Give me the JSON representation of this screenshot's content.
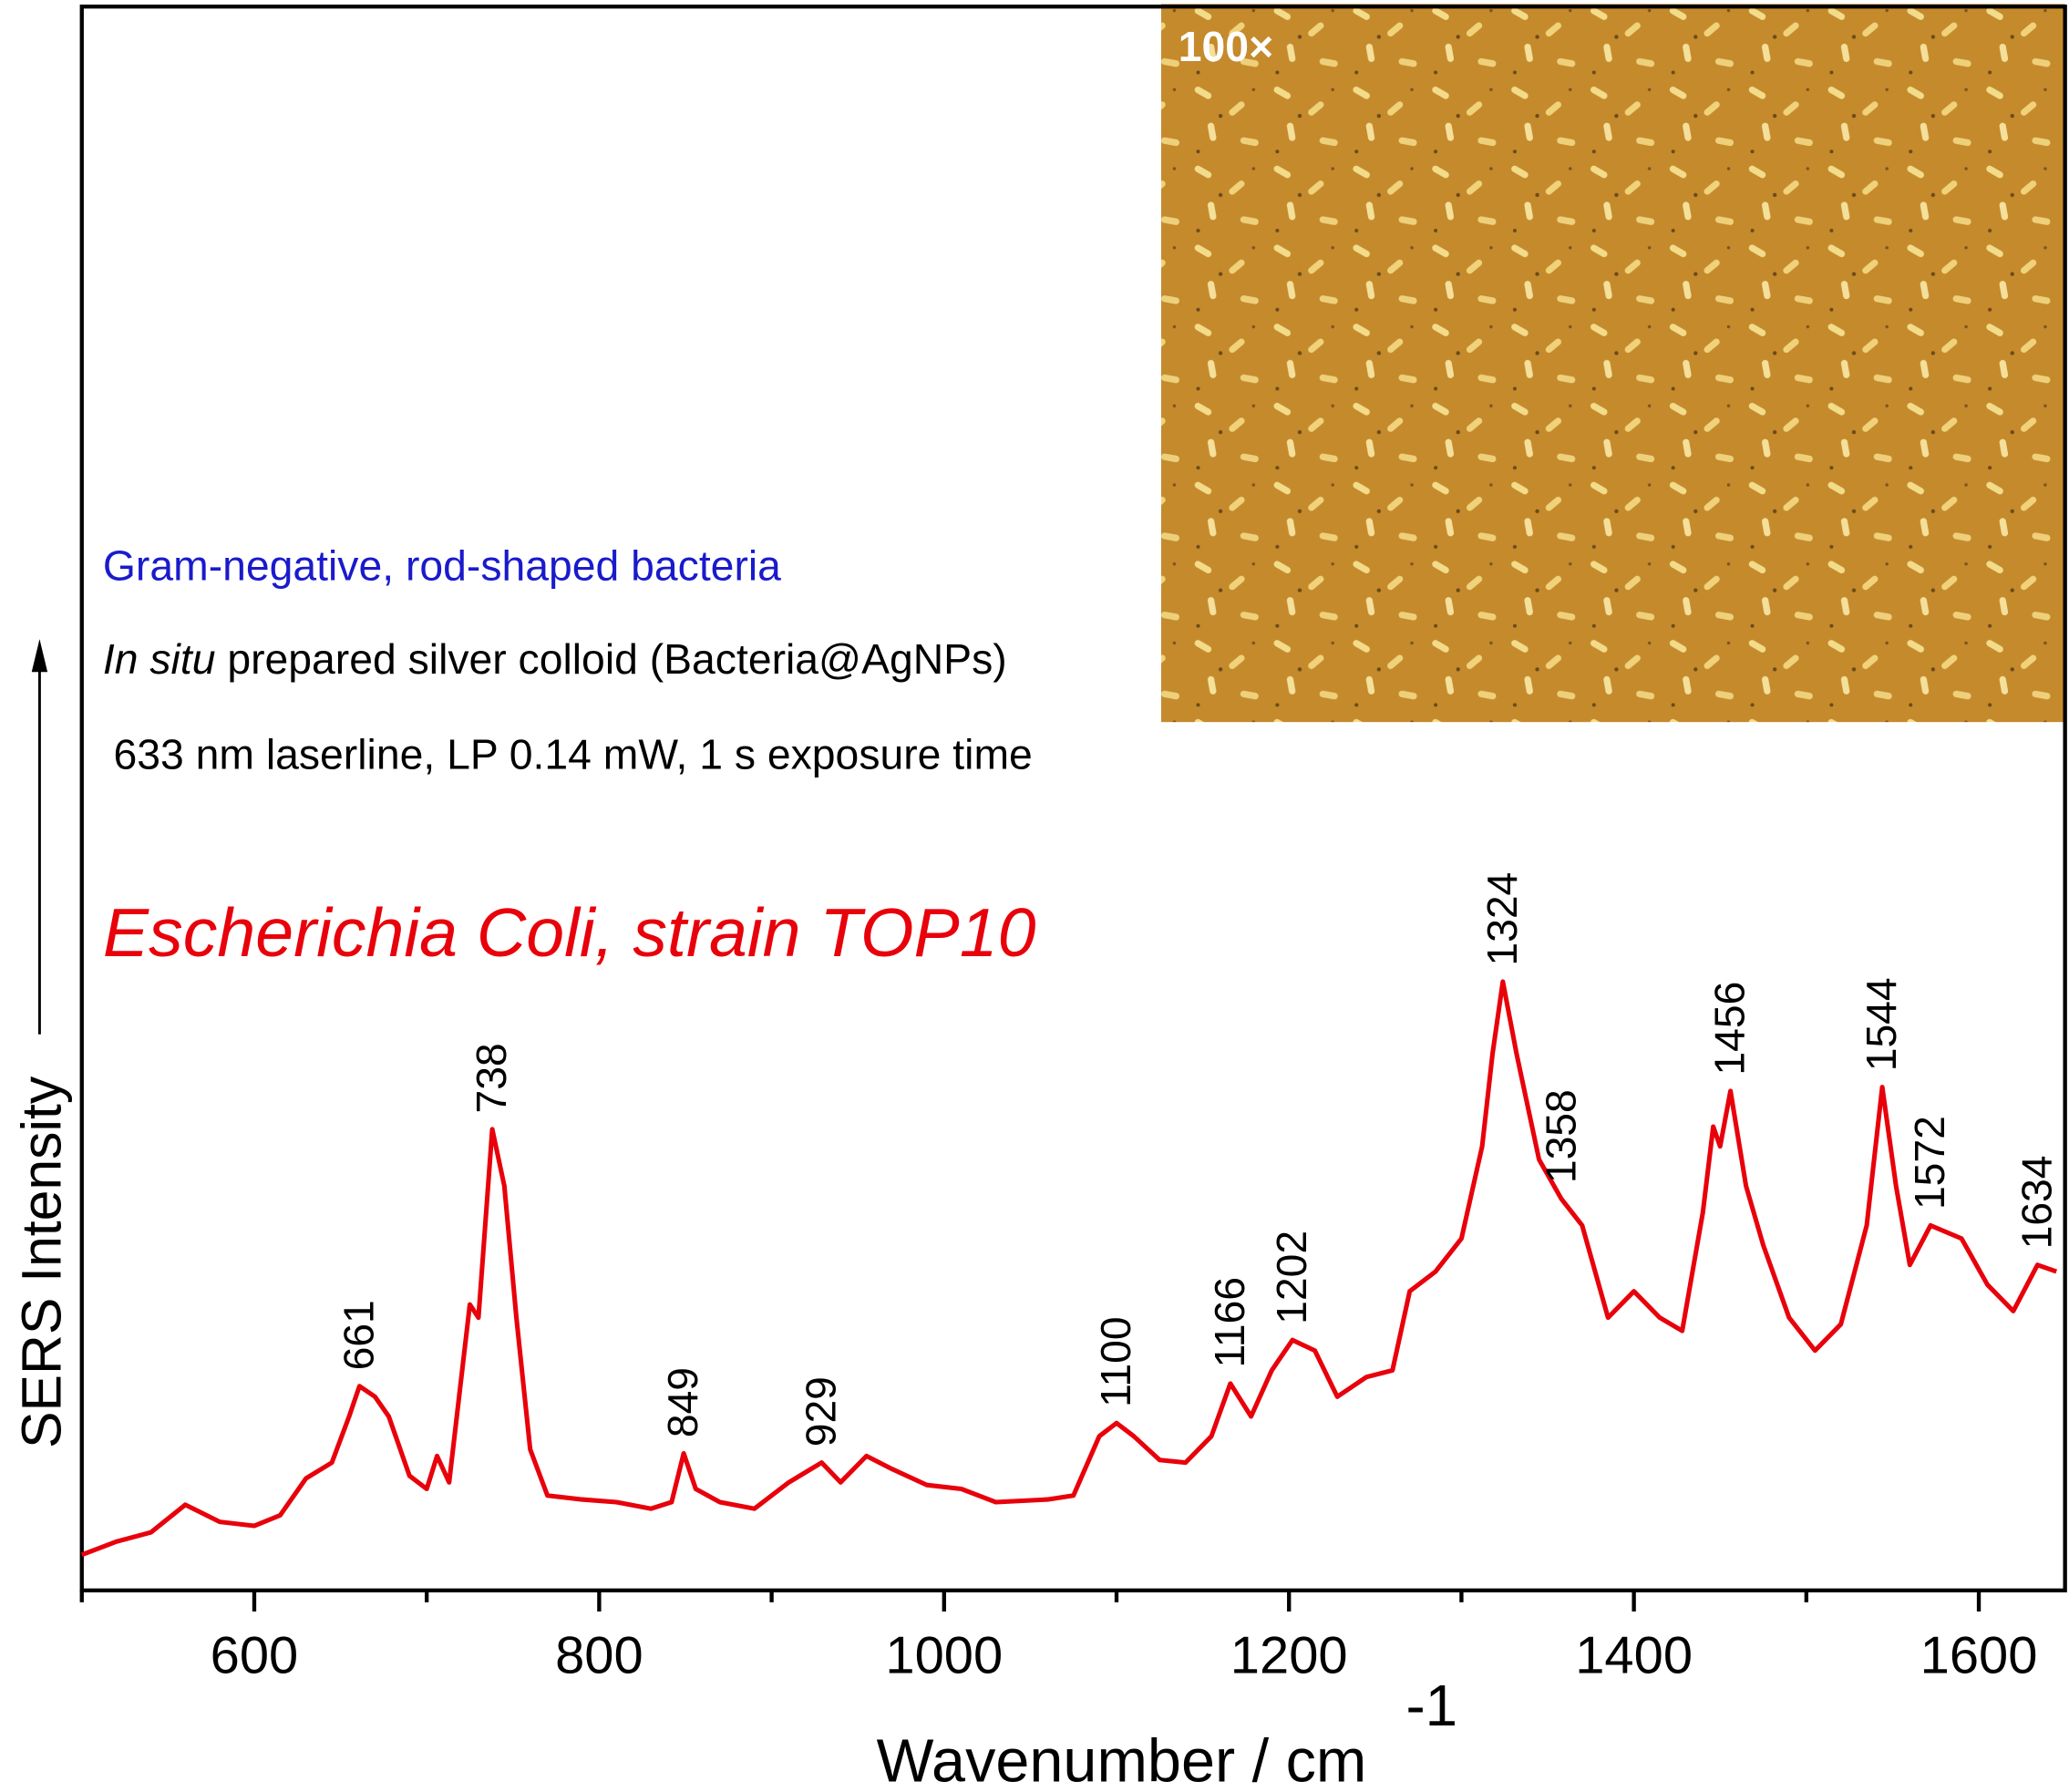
{
  "chart_data": {
    "type": "line",
    "title": "Escherichia Coli, strain TOP10",
    "annotations": [
      "Gram-negative, rod-shaped bacteria",
      "In situ",
      " prepared silver colloid (Bacteria@AgNPs)",
      "633 nm laserline, LP 0.14 mW, 1 s exposure time"
    ],
    "inset_label": "100×",
    "x_label": "Wavenumber / cm",
    "x_label_superscript": "-1",
    "y_label": "SERS Intensity",
    "xlim": [
      500,
      1650
    ],
    "ylim": [
      0,
      120
    ],
    "xticks": [
      600,
      800,
      1000,
      1200,
      1400,
      1600
    ],
    "x_minor_ticks": [
      500,
      700,
      900,
      1100,
      1300,
      1500
    ],
    "series": [
      {
        "name": "Escherichia Coli, strain TOP10",
        "color": "#e8000b",
        "x": [
          500,
          520,
          540,
          560,
          580,
          600,
          615,
          630,
          645,
          655,
          661,
          670,
          678,
          690,
          700,
          706,
          713,
          725,
          730,
          738,
          745,
          752,
          760,
          770,
          790,
          810,
          830,
          842,
          849,
          856,
          870,
          890,
          910,
          929,
          940,
          955,
          970,
          990,
          1010,
          1030,
          1060,
          1075,
          1090,
          1100,
          1110,
          1125,
          1140,
          1155,
          1166,
          1178,
          1190,
          1202,
          1215,
          1228,
          1245,
          1260,
          1270,
          1285,
          1300,
          1312,
          1318,
          1324,
          1332,
          1345,
          1358,
          1370,
          1385,
          1400,
          1415,
          1428,
          1440,
          1446,
          1450,
          1456,
          1465,
          1475,
          1490,
          1505,
          1520,
          1535,
          1544,
          1552,
          1560,
          1572,
          1590,
          1605,
          1620,
          1634,
          1645
        ],
        "values": [
          2.7,
          3.7,
          4.4,
          6.5,
          5.2,
          4.9,
          5.7,
          8.5,
          9.7,
          13.2,
          15.5,
          14.7,
          13.2,
          8.7,
          7.7,
          10.2,
          8.2,
          21.7,
          20.7,
          35,
          30.7,
          20.7,
          10.7,
          7.2,
          6.9,
          6.7,
          6.2,
          6.7,
          10.4,
          7.7,
          6.7,
          6.2,
          8.2,
          9.7,
          8.2,
          10.2,
          9.2,
          8,
          7.7,
          6.7,
          6.9,
          7.2,
          11.7,
          12.7,
          11.7,
          9.9,
          9.7,
          11.7,
          15.7,
          13.2,
          16.7,
          19,
          18.2,
          14.7,
          16.2,
          16.7,
          22.7,
          24.2,
          26.7,
          33.7,
          40.7,
          46.2,
          40.7,
          32.7,
          29.7,
          27.7,
          20.7,
          22.7,
          20.7,
          19.7,
          28.7,
          35.2,
          33.7,
          37.9,
          30.7,
          26.2,
          20.7,
          18.2,
          20.2,
          27.7,
          38.2,
          30.7,
          24.7,
          27.7,
          26.7,
          23.2,
          21.2,
          24.7,
          24.2
        ]
      }
    ],
    "peak_labels": [
      661,
      738,
      849,
      929,
      1100,
      1166,
      1202,
      1324,
      1358,
      1456,
      1544,
      1572,
      1634
    ]
  }
}
